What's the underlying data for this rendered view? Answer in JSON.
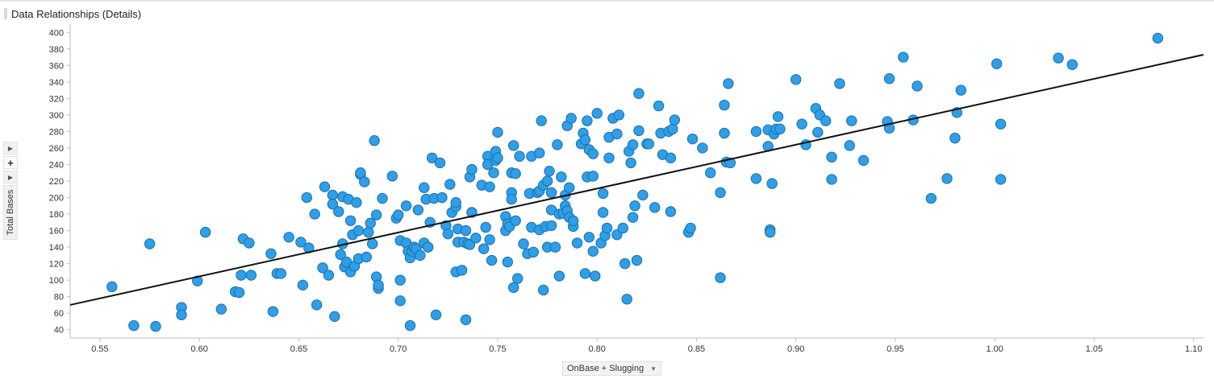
{
  "header": {
    "title": "Data Relationships (Details)"
  },
  "side_controls": {
    "plus_label": "+"
  },
  "axes": {
    "y_label": "Total Bases",
    "x_label": "OnBase + Slugging",
    "x_caret": "▼"
  },
  "colors": {
    "point_fill": "#2e9fe8",
    "point_stroke": "#1d6fa8",
    "trend_line": "#111111",
    "axis": "#bbbbbb"
  },
  "chart_data": {
    "type": "scatter",
    "title": "Data Relationships (Details)",
    "xlabel": "OnBase + Slugging",
    "ylabel": "Total Bases",
    "xlim": [
      0.535,
      1.105
    ],
    "ylim": [
      30,
      410
    ],
    "x_ticks": [
      0.55,
      0.6,
      0.65,
      0.7,
      0.75,
      0.8,
      0.85,
      0.9,
      0.95,
      1.0,
      1.05,
      1.1
    ],
    "x_tick_labels": [
      "0.55",
      "0.60",
      "0.65",
      "0.70",
      "0.75",
      "0.80",
      "0.85",
      "0.90",
      "0.95",
      "1.00",
      "1.05",
      "1.10"
    ],
    "y_ticks": [
      40,
      60,
      80,
      100,
      120,
      140,
      160,
      180,
      200,
      220,
      240,
      260,
      280,
      300,
      320,
      340,
      360,
      380,
      400
    ],
    "y_tick_labels": [
      "40",
      "60",
      "80",
      "100",
      "120",
      "140",
      "160",
      "180",
      "200",
      "220",
      "240",
      "260",
      "280",
      "300",
      "320",
      "340",
      "360",
      "380",
      "400"
    ],
    "trend_line": {
      "x": [
        0.535,
        1.105
      ],
      "y": [
        70,
        373
      ]
    },
    "points": [
      [
        0.556,
        92
      ],
      [
        0.567,
        45
      ],
      [
        0.575,
        144
      ],
      [
        0.578,
        44
      ],
      [
        0.591,
        67
      ],
      [
        0.591,
        58
      ],
      [
        0.599,
        99
      ],
      [
        0.603,
        158
      ],
      [
        0.611,
        65
      ],
      [
        0.618,
        86
      ],
      [
        0.62,
        85
      ],
      [
        0.621,
        106
      ],
      [
        0.622,
        150
      ],
      [
        0.625,
        145
      ],
      [
        0.626,
        106
      ],
      [
        0.636,
        132
      ],
      [
        0.637,
        62
      ],
      [
        0.639,
        108
      ],
      [
        0.641,
        108
      ],
      [
        0.645,
        152
      ],
      [
        0.651,
        146
      ],
      [
        0.652,
        94
      ],
      [
        0.654,
        200
      ],
      [
        0.655,
        139
      ],
      [
        0.658,
        180
      ],
      [
        0.659,
        70
      ],
      [
        0.662,
        115
      ],
      [
        0.663,
        213
      ],
      [
        0.665,
        106
      ],
      [
        0.667,
        203
      ],
      [
        0.667,
        192
      ],
      [
        0.668,
        56
      ],
      [
        0.67,
        183
      ],
      [
        0.671,
        131
      ],
      [
        0.672,
        144
      ],
      [
        0.672,
        201
      ],
      [
        0.673,
        116
      ],
      [
        0.674,
        122
      ],
      [
        0.675,
        198
      ],
      [
        0.676,
        172
      ],
      [
        0.676,
        110
      ],
      [
        0.677,
        155
      ],
      [
        0.678,
        117
      ],
      [
        0.679,
        194
      ],
      [
        0.68,
        160
      ],
      [
        0.68,
        126
      ],
      [
        0.681,
        228
      ],
      [
        0.681,
        230
      ],
      [
        0.683,
        219
      ],
      [
        0.684,
        128
      ],
      [
        0.685,
        158
      ],
      [
        0.686,
        169
      ],
      [
        0.687,
        144
      ],
      [
        0.688,
        269
      ],
      [
        0.689,
        179
      ],
      [
        0.689,
        104
      ],
      [
        0.69,
        90
      ],
      [
        0.69,
        94
      ],
      [
        0.692,
        199
      ],
      [
        0.697,
        226
      ],
      [
        0.699,
        175
      ],
      [
        0.7,
        179
      ],
      [
        0.701,
        148
      ],
      [
        0.701,
        100
      ],
      [
        0.701,
        75
      ],
      [
        0.704,
        190
      ],
      [
        0.704,
        145
      ],
      [
        0.705,
        135
      ],
      [
        0.706,
        45
      ],
      [
        0.706,
        127
      ],
      [
        0.707,
        135
      ],
      [
        0.708,
        140
      ],
      [
        0.709,
        138
      ],
      [
        0.71,
        185
      ],
      [
        0.711,
        130
      ],
      [
        0.713,
        212
      ],
      [
        0.713,
        145
      ],
      [
        0.714,
        198
      ],
      [
        0.715,
        140
      ],
      [
        0.716,
        170
      ],
      [
        0.717,
        248
      ],
      [
        0.718,
        199
      ],
      [
        0.719,
        58
      ],
      [
        0.721,
        242
      ],
      [
        0.722,
        200
      ],
      [
        0.724,
        166
      ],
      [
        0.725,
        156
      ],
      [
        0.726,
        216
      ],
      [
        0.727,
        182
      ],
      [
        0.729,
        189
      ],
      [
        0.729,
        194
      ],
      [
        0.729,
        110
      ],
      [
        0.73,
        146
      ],
      [
        0.73,
        162
      ],
      [
        0.732,
        112
      ],
      [
        0.733,
        146
      ],
      [
        0.734,
        160
      ],
      [
        0.734,
        52
      ],
      [
        0.735,
        144
      ],
      [
        0.736,
        143
      ],
      [
        0.736,
        225
      ],
      [
        0.737,
        234
      ],
      [
        0.737,
        182
      ],
      [
        0.739,
        151
      ],
      [
        0.742,
        215
      ],
      [
        0.743,
        138
      ],
      [
        0.744,
        164
      ],
      [
        0.745,
        250
      ],
      [
        0.745,
        240
      ],
      [
        0.746,
        213
      ],
      [
        0.746,
        149
      ],
      [
        0.747,
        124
      ],
      [
        0.748,
        230
      ],
      [
        0.749,
        256
      ],
      [
        0.749,
        245
      ],
      [
        0.75,
        279
      ],
      [
        0.75,
        248
      ],
      [
        0.754,
        177
      ],
      [
        0.754,
        160
      ],
      [
        0.755,
        168
      ],
      [
        0.755,
        122
      ],
      [
        0.756,
        165
      ],
      [
        0.757,
        230
      ],
      [
        0.757,
        206
      ],
      [
        0.757,
        198
      ],
      [
        0.758,
        91
      ],
      [
        0.758,
        263
      ],
      [
        0.759,
        229
      ],
      [
        0.759,
        172
      ],
      [
        0.76,
        102
      ],
      [
        0.761,
        250
      ],
      [
        0.763,
        144
      ],
      [
        0.765,
        132
      ],
      [
        0.766,
        205
      ],
      [
        0.767,
        250
      ],
      [
        0.767,
        164
      ],
      [
        0.768,
        134
      ],
      [
        0.77,
        206
      ],
      [
        0.771,
        208
      ],
      [
        0.771,
        254
      ],
      [
        0.771,
        161
      ],
      [
        0.772,
        293
      ],
      [
        0.773,
        215
      ],
      [
        0.773,
        88
      ],
      [
        0.774,
        165
      ],
      [
        0.775,
        220
      ],
      [
        0.775,
        140
      ],
      [
        0.776,
        232
      ],
      [
        0.777,
        185
      ],
      [
        0.777,
        206
      ],
      [
        0.777,
        166
      ],
      [
        0.779,
        140
      ],
      [
        0.78,
        264
      ],
      [
        0.781,
        105
      ],
      [
        0.781,
        180
      ],
      [
        0.782,
        225
      ],
      [
        0.783,
        181
      ],
      [
        0.784,
        190
      ],
      [
        0.784,
        203
      ],
      [
        0.785,
        184
      ],
      [
        0.785,
        287
      ],
      [
        0.786,
        176
      ],
      [
        0.786,
        212
      ],
      [
        0.787,
        296
      ],
      [
        0.788,
        165
      ],
      [
        0.788,
        172
      ],
      [
        0.79,
        145
      ],
      [
        0.792,
        265
      ],
      [
        0.793,
        278
      ],
      [
        0.794,
        270
      ],
      [
        0.794,
        108
      ],
      [
        0.795,
        293
      ],
      [
        0.795,
        225
      ],
      [
        0.796,
        152
      ],
      [
        0.796,
        258
      ],
      [
        0.798,
        226
      ],
      [
        0.798,
        135
      ],
      [
        0.798,
        253
      ],
      [
        0.799,
        105
      ],
      [
        0.8,
        302
      ],
      [
        0.802,
        145
      ],
      [
        0.803,
        205
      ],
      [
        0.803,
        182
      ],
      [
        0.804,
        154
      ],
      [
        0.805,
        163
      ],
      [
        0.806,
        248
      ],
      [
        0.806,
        273
      ],
      [
        0.808,
        296
      ],
      [
        0.81,
        155
      ],
      [
        0.81,
        277
      ],
      [
        0.811,
        300
      ],
      [
        0.813,
        163
      ],
      [
        0.814,
        120
      ],
      [
        0.815,
        77
      ],
      [
        0.816,
        256
      ],
      [
        0.817,
        242
      ],
      [
        0.818,
        176
      ],
      [
        0.818,
        264
      ],
      [
        0.819,
        190
      ],
      [
        0.82,
        124
      ],
      [
        0.821,
        326
      ],
      [
        0.821,
        281
      ],
      [
        0.823,
        203
      ],
      [
        0.825,
        265
      ],
      [
        0.826,
        265
      ],
      [
        0.829,
        188
      ],
      [
        0.831,
        311
      ],
      [
        0.832,
        278
      ],
      [
        0.833,
        252
      ],
      [
        0.836,
        280
      ],
      [
        0.837,
        183
      ],
      [
        0.837,
        248
      ],
      [
        0.838,
        283
      ],
      [
        0.839,
        294
      ],
      [
        0.846,
        158
      ],
      [
        0.847,
        163
      ],
      [
        0.848,
        271
      ],
      [
        0.853,
        260
      ],
      [
        0.857,
        230
      ],
      [
        0.862,
        206
      ],
      [
        0.862,
        103
      ],
      [
        0.864,
        312
      ],
      [
        0.864,
        278
      ],
      [
        0.865,
        243
      ],
      [
        0.866,
        338
      ],
      [
        0.867,
        242
      ],
      [
        0.88,
        280
      ],
      [
        0.88,
        223
      ],
      [
        0.886,
        262
      ],
      [
        0.886,
        282
      ],
      [
        0.887,
        161
      ],
      [
        0.887,
        158
      ],
      [
        0.888,
        217
      ],
      [
        0.889,
        277
      ],
      [
        0.89,
        283
      ],
      [
        0.891,
        298
      ],
      [
        0.892,
        283
      ],
      [
        0.9,
        343
      ],
      [
        0.903,
        289
      ],
      [
        0.905,
        264
      ],
      [
        0.91,
        308
      ],
      [
        0.911,
        279
      ],
      [
        0.912,
        300
      ],
      [
        0.915,
        293
      ],
      [
        0.918,
        249
      ],
      [
        0.918,
        222
      ],
      [
        0.922,
        338
      ],
      [
        0.927,
        263
      ],
      [
        0.928,
        293
      ],
      [
        0.934,
        245
      ],
      [
        0.946,
        292
      ],
      [
        0.947,
        284
      ],
      [
        0.947,
        344
      ],
      [
        0.954,
        370
      ],
      [
        0.959,
        294
      ],
      [
        0.961,
        335
      ],
      [
        0.968,
        199
      ],
      [
        0.976,
        223
      ],
      [
        0.98,
        272
      ],
      [
        0.981,
        303
      ],
      [
        0.983,
        330
      ],
      [
        1.001,
        362
      ],
      [
        1.003,
        289
      ],
      [
        1.003,
        222
      ],
      [
        1.032,
        369
      ],
      [
        1.039,
        361
      ],
      [
        1.082,
        393
      ]
    ]
  }
}
